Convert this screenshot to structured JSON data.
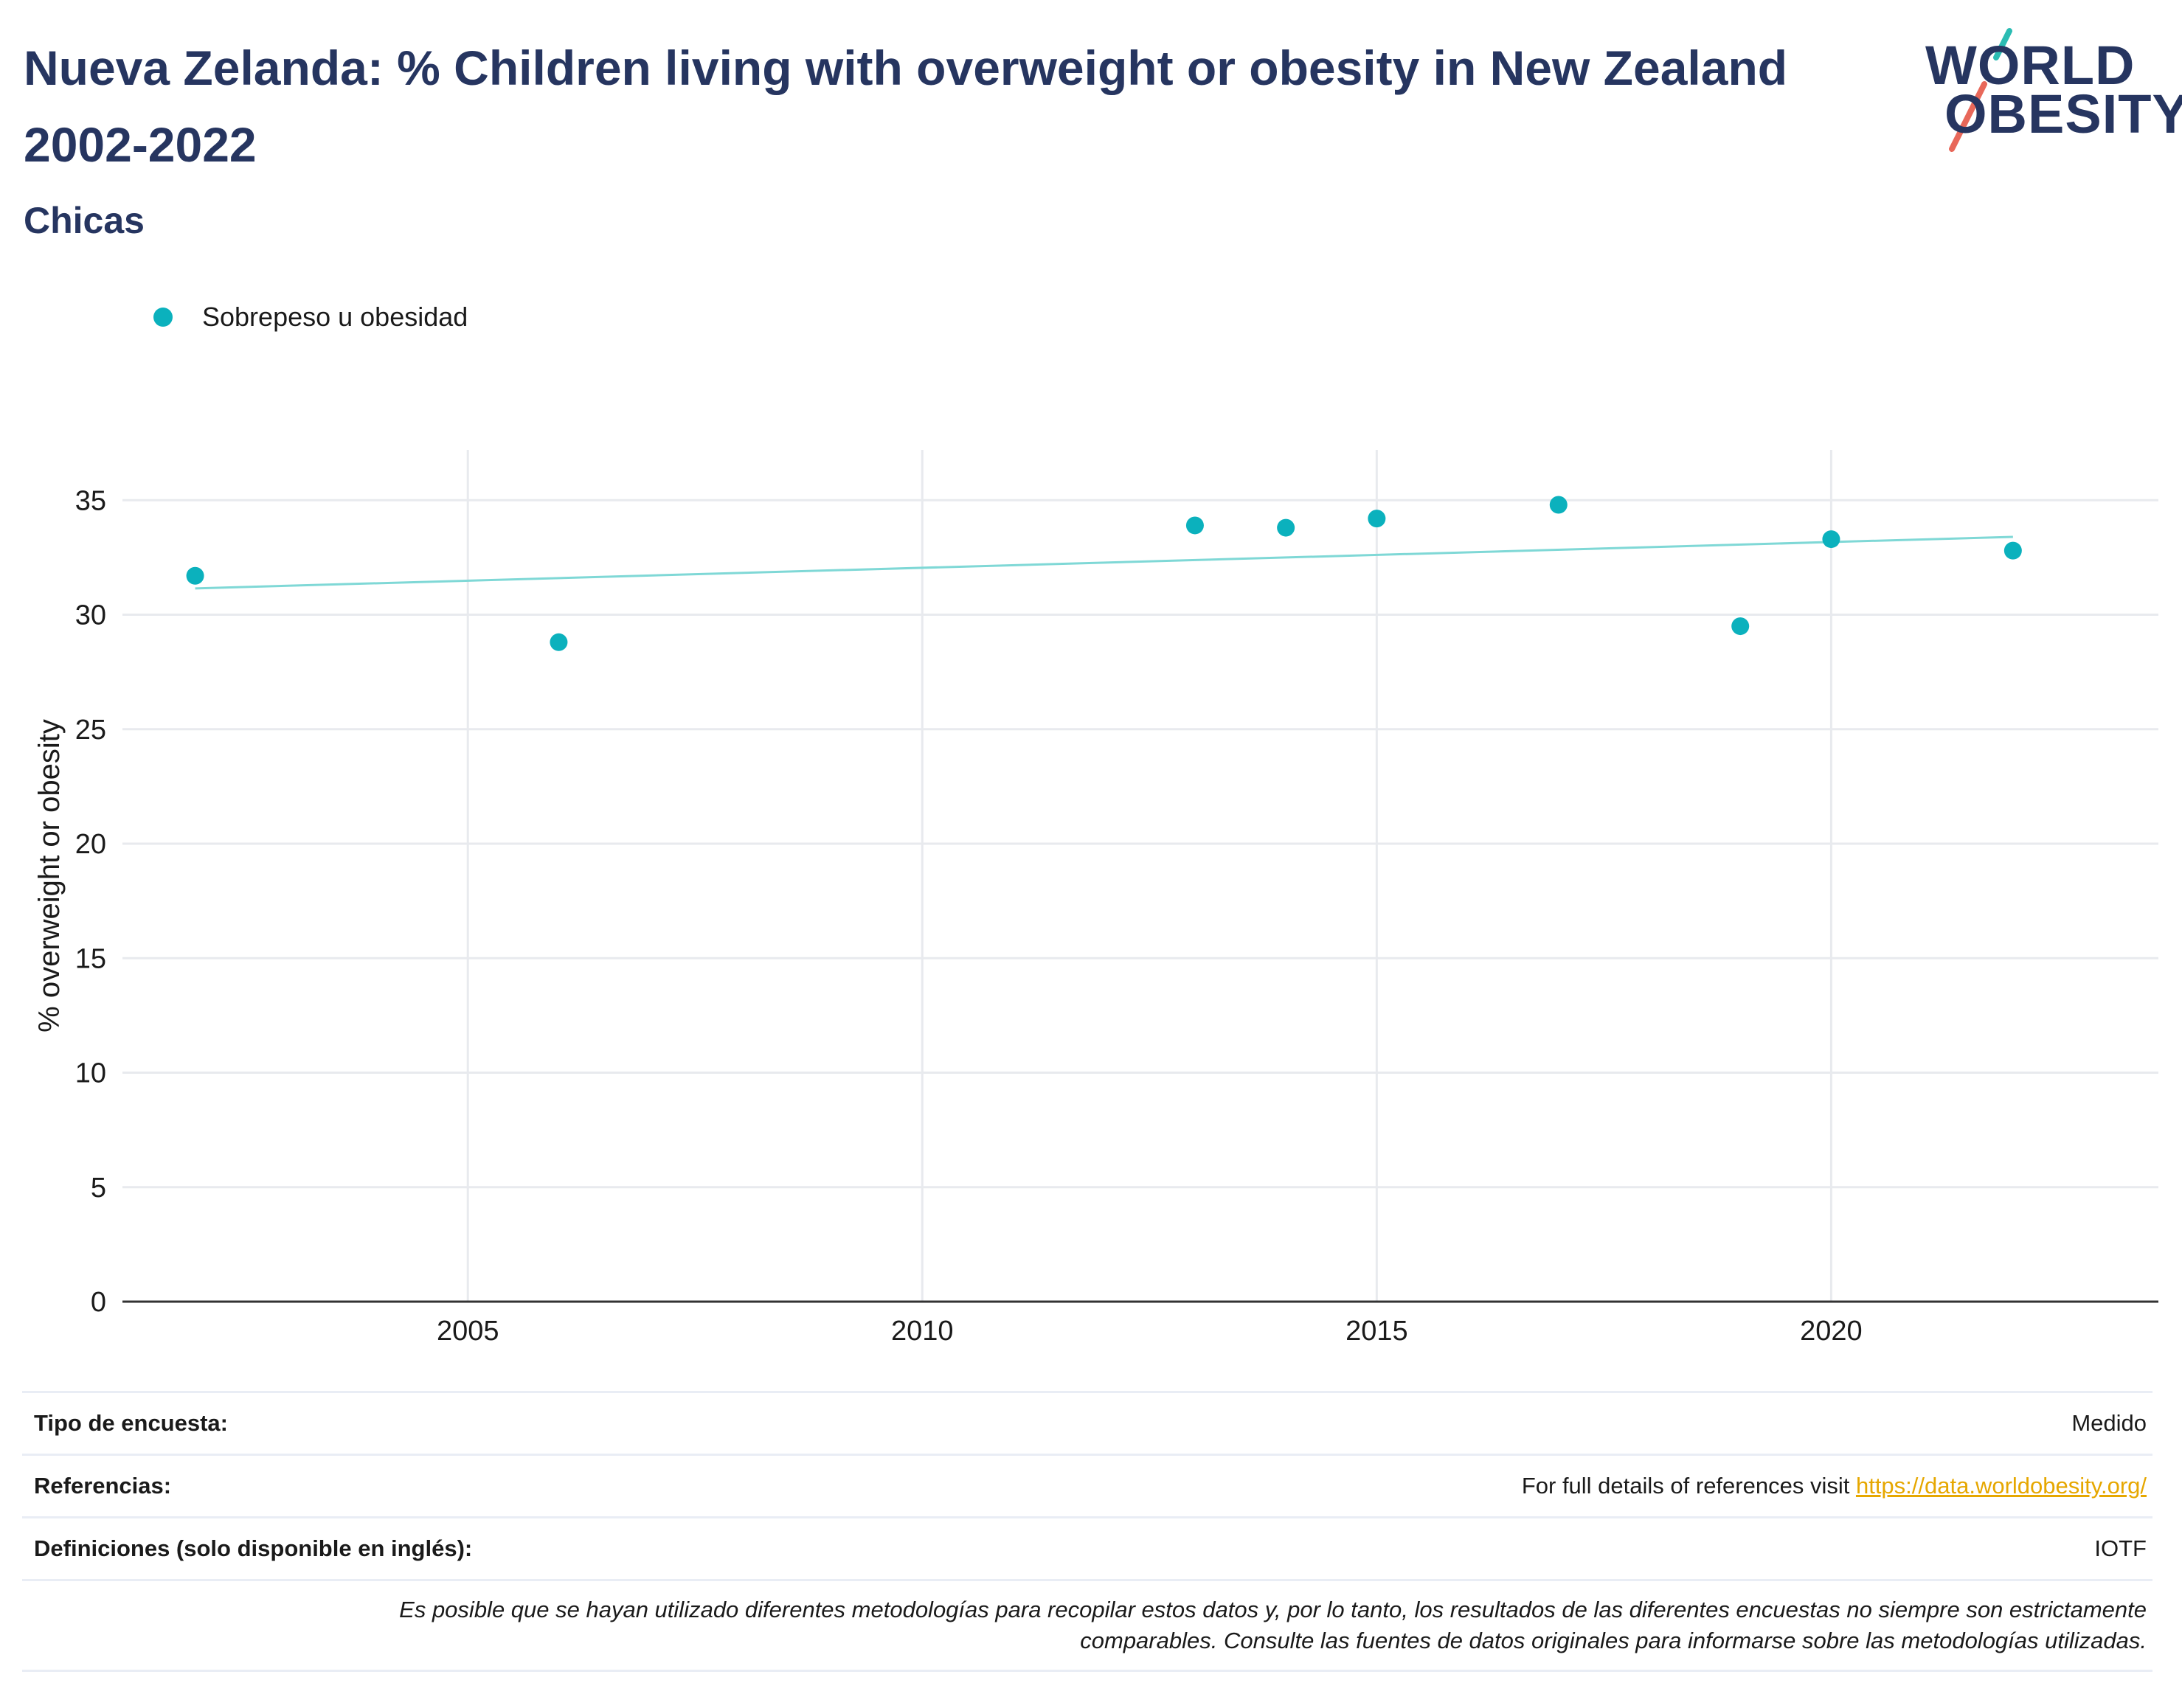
{
  "header": {
    "title": "Nueva Zelanda: % Children living with overweight or obesity in New Zealand 2002-2022",
    "subtitle": "Chicas"
  },
  "logo": {
    "line1": "WORLD",
    "line2": "OBESITY",
    "slash_top_color": "#2bbcb3",
    "slash_bottom_color": "#e8685a"
  },
  "legend": {
    "label": "Sobrepeso u obesidad",
    "color": "#0bb1bd"
  },
  "chart_data": {
    "type": "scatter",
    "title": "",
    "xlabel": "",
    "ylabel": "% overweight or obesity",
    "xlim": [
      2001.2,
      2023.6
    ],
    "ylim": [
      0,
      37.2
    ],
    "x_ticks": [
      2005,
      2010,
      2015,
      2020
    ],
    "y_ticks": [
      0,
      5,
      10,
      15,
      20,
      25,
      30,
      35
    ],
    "grid": true,
    "legend_position": "top-left",
    "series": [
      {
        "name": "Sobrepeso u obesidad",
        "color": "#0bb1bd",
        "x": [
          2002,
          2006,
          2013,
          2014,
          2015,
          2017,
          2019,
          2020,
          2022
        ],
        "y": [
          31.7,
          28.8,
          33.9,
          33.8,
          34.2,
          34.8,
          29.5,
          33.3,
          32.8
        ]
      }
    ],
    "trendline": {
      "color": "#7fd8d6",
      "x": [
        2002,
        2022
      ],
      "y": [
        31.15,
        33.4
      ]
    }
  },
  "footer": {
    "survey_type_label": "Tipo de encuesta:",
    "survey_type_value": "Medido",
    "references_label": "Referencias:",
    "references_text": "For full details of references visit",
    "references_link": "https://data.worldobesity.org/",
    "definitions_label": "Definiciones (solo disponible en inglés):",
    "definitions_value": "IOTF",
    "note_line1": "Es posible que se hayan utilizado diferentes metodologías para recopilar estos datos y, por lo tanto, los resultados de las diferentes encuestas no siempre son estrictamente",
    "note_line2": "comparables. Consulte las fuentes de datos originales para informarse sobre las metodologías utilizadas."
  }
}
